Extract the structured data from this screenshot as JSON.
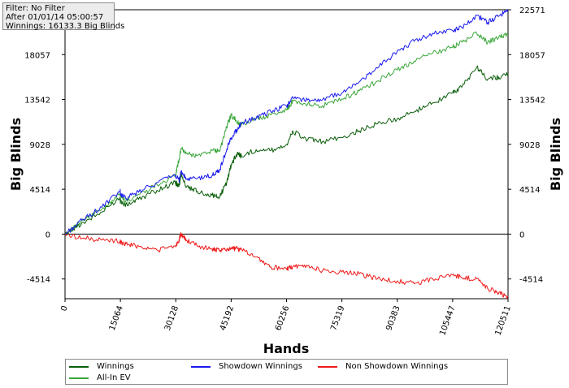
{
  "filter_box": {
    "line1": "Filter: No Filter",
    "line2": "After 01/01/14 05:00:57",
    "line3": "Winnings: 16133.3 Big Blinds"
  },
  "chart_data": {
    "type": "line",
    "xlabel": "Hands",
    "ylabel": "Big Blinds",
    "xlim": [
      0,
      120511
    ],
    "ylim": [
      -6500,
      22571
    ],
    "x_ticks": [
      0,
      15064,
      30128,
      45192,
      60256,
      75319,
      90383,
      105447,
      120511
    ],
    "y_ticks": [
      -4514,
      0,
      4514,
      9028,
      13542,
      18057,
      22571
    ],
    "grid": false,
    "legend_position": "bottom",
    "series": [
      {
        "name": "Winnings",
        "color": "#0a5e0a",
        "x": [
          0,
          5000,
          10000,
          15000,
          15064,
          16500,
          20000,
          25000,
          30000,
          31000,
          31600,
          33000,
          36000,
          40000,
          42000,
          44000,
          45192,
          47000,
          48000,
          52000,
          56000,
          60256,
          62000,
          66000,
          70000,
          75319,
          80000,
          85000,
          90383,
          95000,
          100000,
          105447,
          108000,
          112000,
          115000,
          118000,
          120511
        ],
        "y": [
          0,
          1200,
          2200,
          3700,
          3300,
          2900,
          3500,
          4400,
          5200,
          4800,
          6100,
          4700,
          4300,
          3900,
          3700,
          5200,
          7000,
          8200,
          7800,
          8500,
          8400,
          9000,
          10300,
          9500,
          9300,
          9700,
          10400,
          11100,
          11600,
          12300,
          13200,
          14200,
          14800,
          16800,
          15600,
          15800,
          16133
        ]
      },
      {
        "name": "All-In EV",
        "color": "#3aa63a",
        "x": [
          0,
          5000,
          10000,
          15000,
          15064,
          16500,
          20000,
          25000,
          30000,
          31000,
          31600,
          33000,
          36000,
          40000,
          42000,
          44000,
          45192,
          47000,
          48000,
          52000,
          56000,
          60256,
          62000,
          66000,
          70000,
          75319,
          80000,
          85000,
          90383,
          95000,
          100000,
          105447,
          108000,
          112000,
          115000,
          118000,
          120511
        ],
        "y": [
          0,
          1400,
          2500,
          4100,
          3800,
          3300,
          4000,
          5000,
          5800,
          7500,
          8600,
          8100,
          7900,
          8400,
          8300,
          10800,
          12000,
          11200,
          11000,
          11600,
          12000,
          12500,
          13400,
          13100,
          12900,
          13600,
          14400,
          15400,
          16500,
          17400,
          18200,
          18800,
          19300,
          20200,
          19300,
          19800,
          20100
        ]
      },
      {
        "name": "Showdown Winnings",
        "color": "#1a1aee",
        "x": [
          0,
          5000,
          10000,
          15000,
          15064,
          16500,
          20000,
          25000,
          30000,
          31000,
          31600,
          33000,
          36000,
          40000,
          42000,
          44000,
          45192,
          47000,
          48000,
          52000,
          56000,
          60256,
          62000,
          66000,
          70000,
          75319,
          80000,
          85000,
          90383,
          95000,
          100000,
          105447,
          108000,
          112000,
          115000,
          118000,
          120511
        ],
        "y": [
          0,
          1500,
          2700,
          4300,
          4100,
          3600,
          4200,
          5200,
          5900,
          5400,
          6300,
          5500,
          5600,
          5900,
          6400,
          8500,
          9700,
          10600,
          11200,
          11700,
          12300,
          12900,
          13700,
          13500,
          13500,
          14200,
          15300,
          16700,
          18400,
          19400,
          20200,
          20500,
          20800,
          22000,
          21300,
          21900,
          22571
        ]
      },
      {
        "name": "Non Showdown Winnings",
        "color": "#ee1a1a",
        "x": [
          0,
          5000,
          10000,
          15000,
          15064,
          16500,
          20000,
          25000,
          30000,
          31000,
          31600,
          33000,
          36000,
          40000,
          42000,
          44000,
          45192,
          47000,
          48000,
          52000,
          56000,
          60256,
          62000,
          66000,
          70000,
          75319,
          80000,
          85000,
          90383,
          95000,
          100000,
          105447,
          108000,
          112000,
          115000,
          118000,
          120511
        ],
        "y": [
          0,
          -400,
          -600,
          -700,
          -800,
          -1000,
          -1200,
          -1600,
          -1200,
          -600,
          0,
          -600,
          -1200,
          -1500,
          -1700,
          -1500,
          -1400,
          -1500,
          -1500,
          -2300,
          -3300,
          -3500,
          -3300,
          -3200,
          -3700,
          -3800,
          -4000,
          -4500,
          -4700,
          -5000,
          -4500,
          -4100,
          -4400,
          -4500,
          -5500,
          -5900,
          -6300
        ]
      }
    ]
  },
  "legend": {
    "items": [
      {
        "label": "Winnings",
        "color": "#0a5e0a"
      },
      {
        "label": "All-In EV",
        "color": "#3aa63a"
      },
      {
        "label": "Showdown Winnings",
        "color": "#1a1aee"
      },
      {
        "label": "Non Showdown Winnings",
        "color": "#ee1a1a"
      }
    ]
  }
}
